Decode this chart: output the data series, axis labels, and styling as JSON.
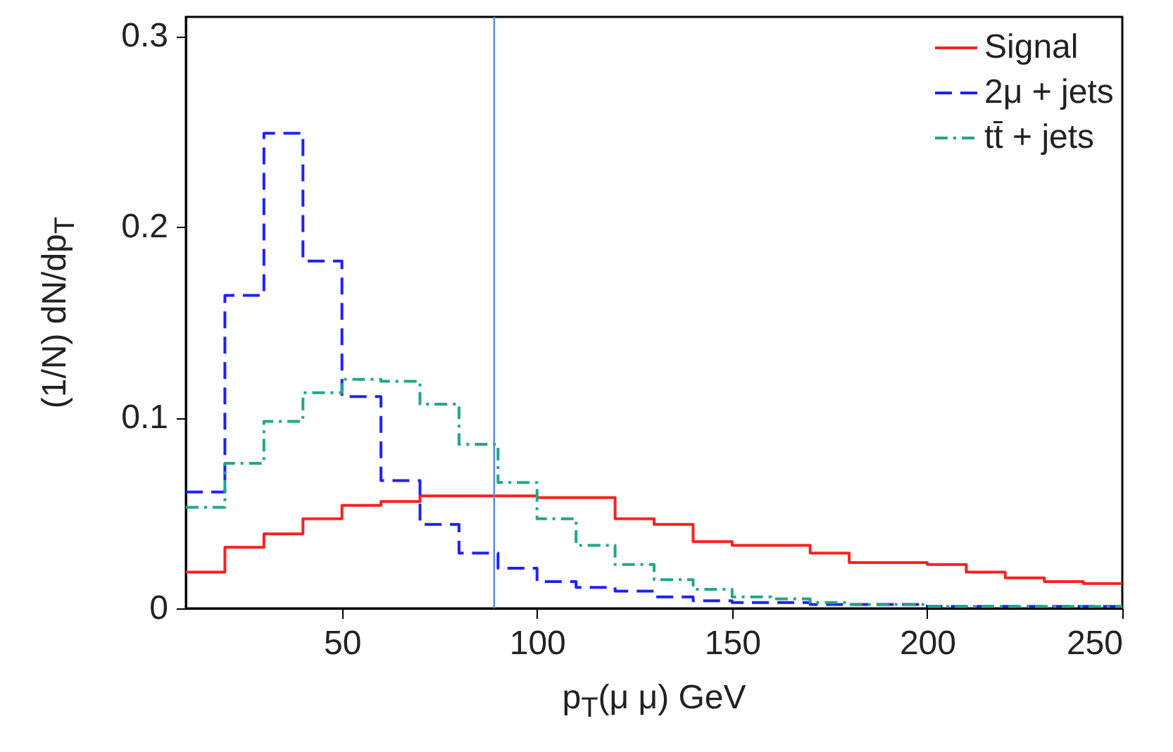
{
  "chart_data": {
    "type": "histogram",
    "xlabel": "p$_{T}$(μ μ) GeV",
    "ylabel": "(1/N) dN/dp$_{T}$",
    "bins": [
      10,
      20,
      30,
      40,
      50,
      60,
      70,
      80,
      90,
      100,
      110,
      120,
      130,
      140,
      150,
      160,
      170,
      180,
      190,
      200,
      210,
      220,
      230,
      240,
      250
    ],
    "series": [
      {
        "name": "Signal",
        "color": "#ff2020",
        "line_style": "solid",
        "values": [
          0.019,
          0.032,
          0.039,
          0.047,
          0.054,
          0.056,
          0.059,
          0.059,
          0.059,
          0.058,
          0.058,
          0.047,
          0.044,
          0.035,
          0.033,
          0.033,
          0.029,
          0.024,
          0.024,
          0.023,
          0.019,
          0.016,
          0.014,
          0.013
        ]
      },
      {
        "name": "2μ + jets",
        "color": "#2020ff",
        "line_style": "dashed",
        "values": [
          0.061,
          0.164,
          0.249,
          0.182,
          0.111,
          0.067,
          0.044,
          0.029,
          0.021,
          0.014,
          0.011,
          0.009,
          0.006,
          0.004,
          0.003,
          0.003,
          0.002,
          0.002,
          0.002,
          0.001,
          0.001,
          0.001,
          0.001,
          0.001
        ]
      },
      {
        "name": "tt̄ + jets",
        "color": "#20a888",
        "line_style": "dotted",
        "values": [
          0.053,
          0.076,
          0.098,
          0.113,
          0.12,
          0.119,
          0.107,
          0.086,
          0.066,
          0.047,
          0.033,
          0.023,
          0.015,
          0.01,
          0.006,
          0.005,
          0.003,
          0.002,
          0.002,
          0.001,
          0.001,
          0.001,
          0.001,
          0.001
        ]
      }
    ],
    "xlim": [
      10,
      250
    ],
    "xticks": [
      50,
      100,
      150,
      200,
      250
    ],
    "ylim": [
      0,
      0.31
    ],
    "yticks": [
      0,
      0.1,
      0.2,
      0.3
    ],
    "ref_lines": [
      {
        "axis": "x",
        "value": 89,
        "color": "#4a90d9"
      }
    ],
    "legend": "top right"
  }
}
